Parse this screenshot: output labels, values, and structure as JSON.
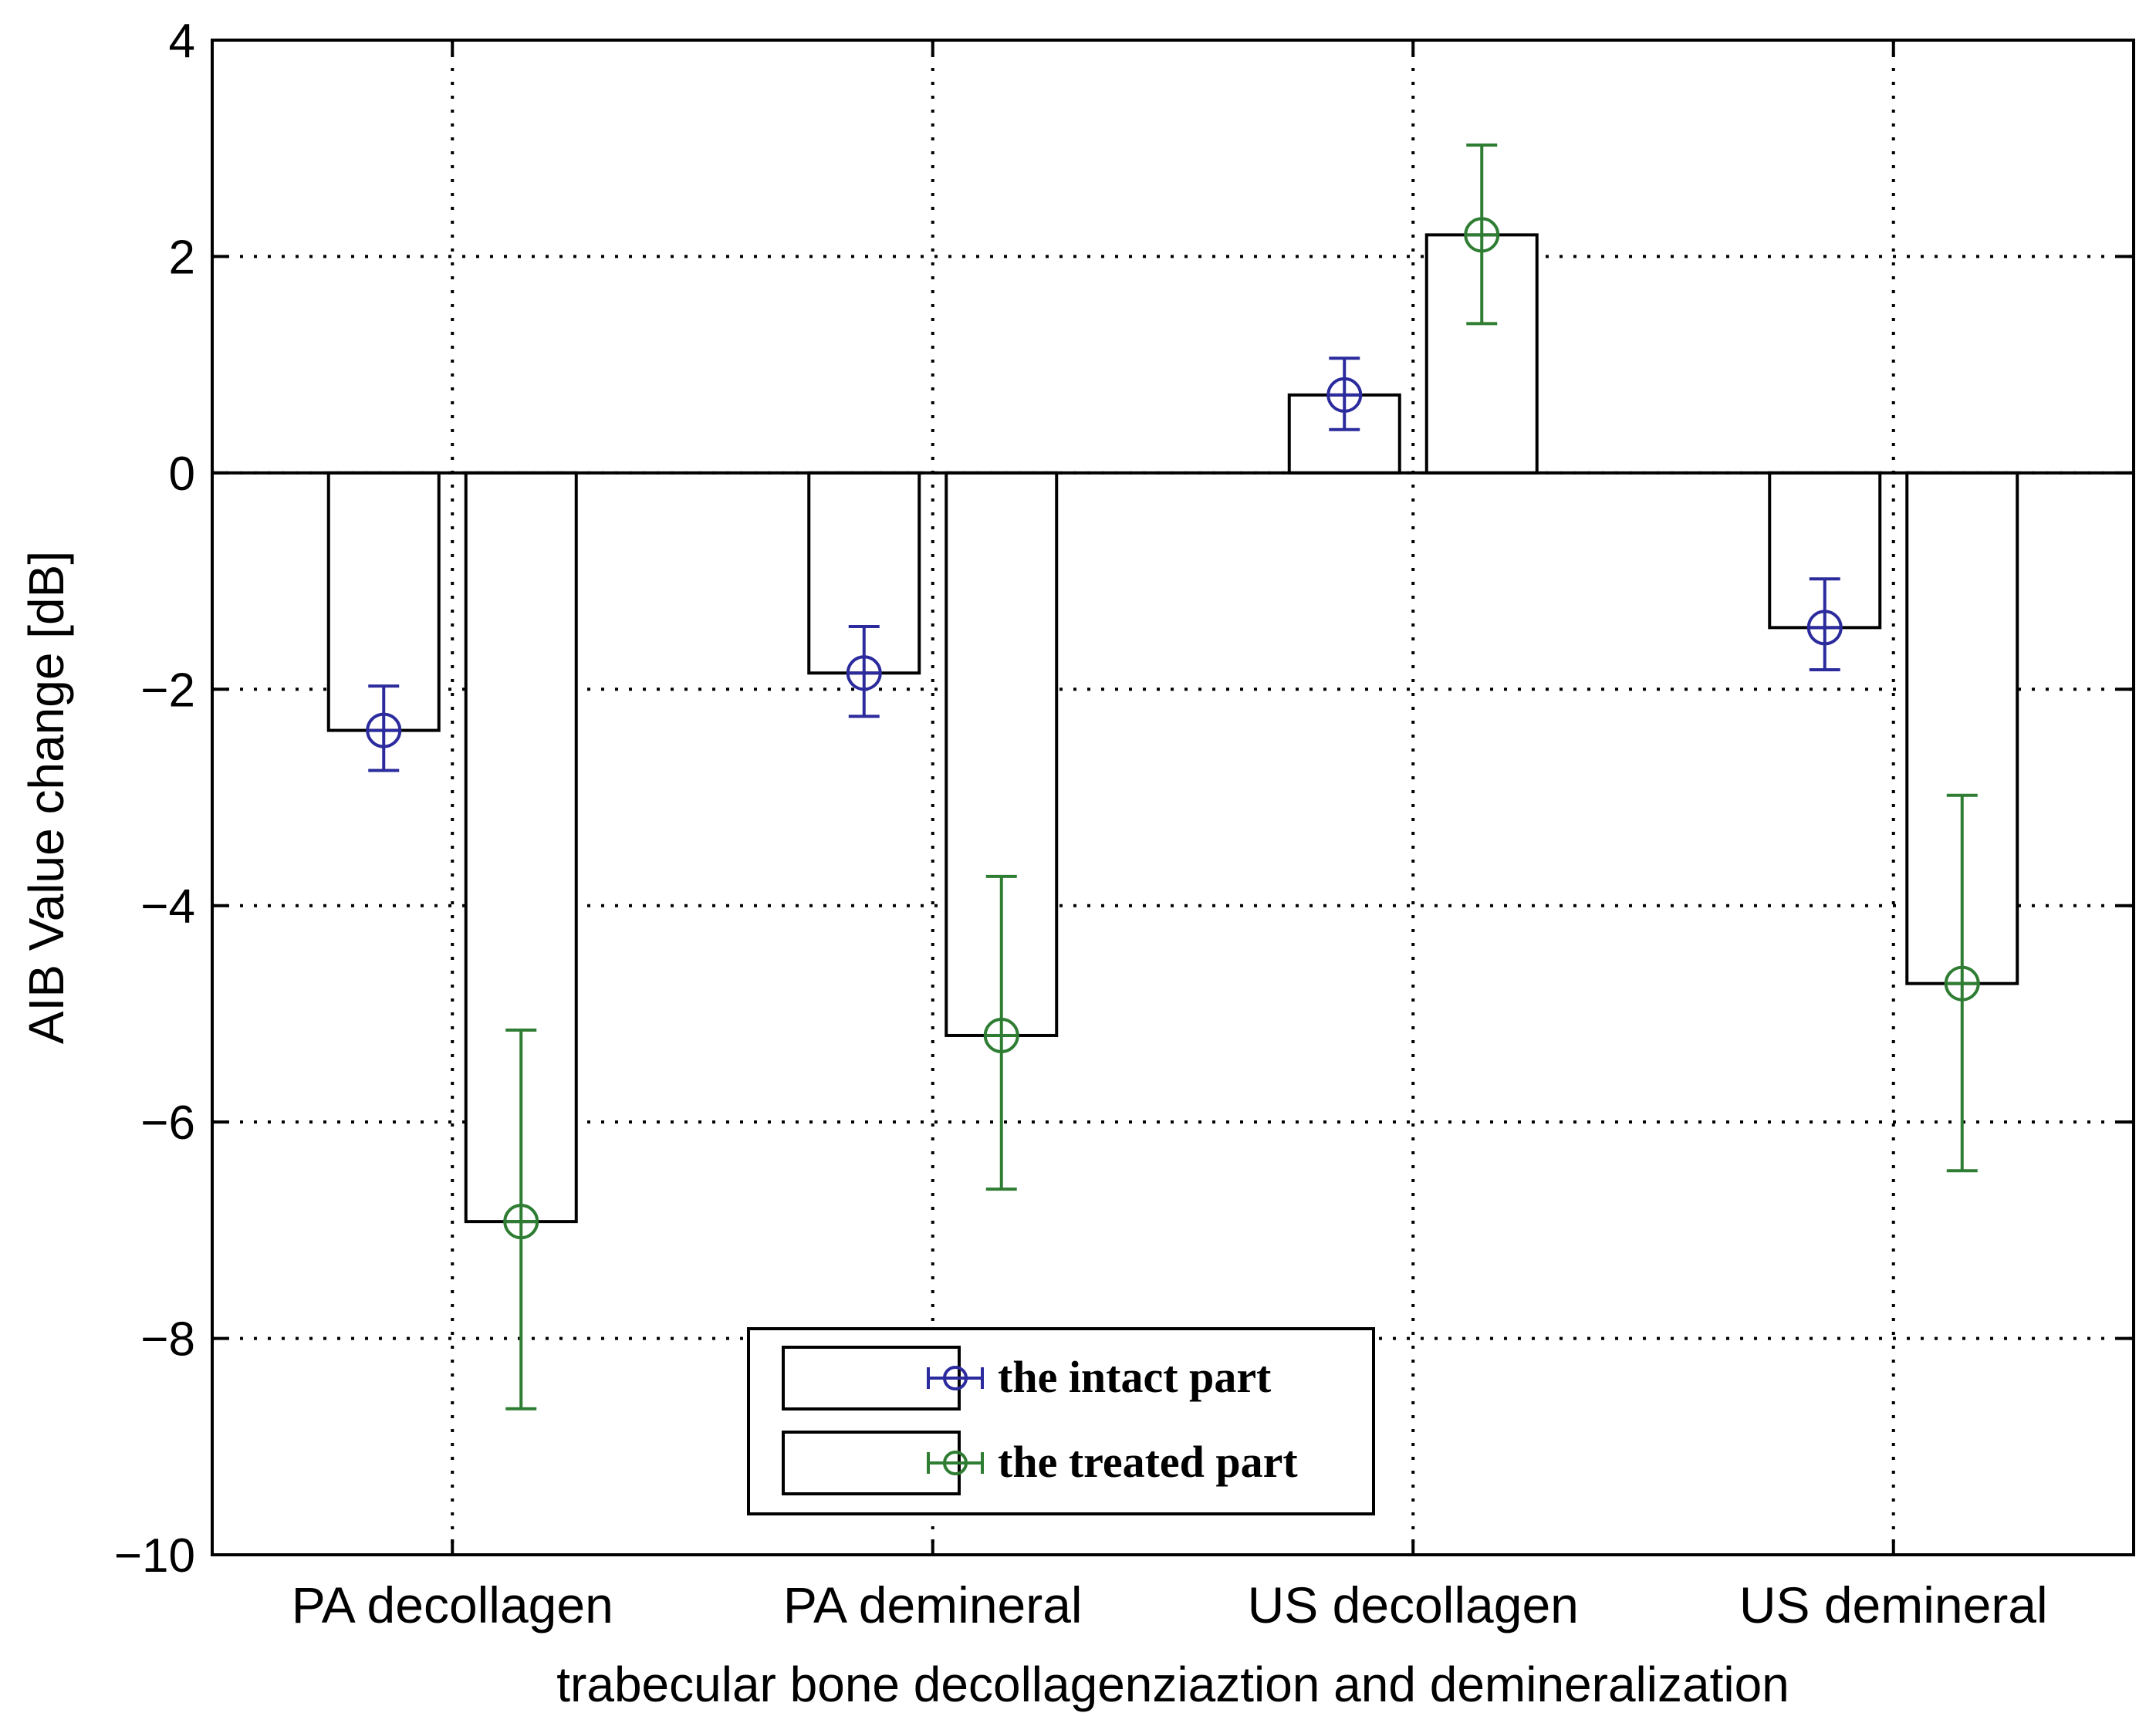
{
  "chart_data": {
    "type": "bar",
    "title": "",
    "xlabel": "trabecular bone decollagenziaztion and demineralization",
    "ylabel": "AIB Value change [dB]",
    "ylim": [
      -10,
      4
    ],
    "yticks": [
      4,
      2,
      0,
      -2,
      -4,
      -6,
      -8,
      -10
    ],
    "ytick_labels": [
      "4",
      "2",
      "0",
      "−2",
      "−4",
      "−6",
      "−8",
      "−10"
    ],
    "categories": [
      "PA decollagen",
      "PA demineral",
      "US decollagen",
      "US demineral"
    ],
    "grid": true,
    "legend_position": "bottom-center",
    "series": [
      {
        "name": "the intact part",
        "color": "#2b2b9e",
        "values": [
          -2.38,
          -1.85,
          0.72,
          -1.43
        ],
        "error_low": [
          -2.75,
          -2.25,
          0.4,
          -1.82
        ],
        "error_high": [
          -1.97,
          -1.42,
          1.06,
          -0.98
        ]
      },
      {
        "name": "the treated part",
        "color": "#2e7d32",
        "values": [
          -6.92,
          -5.2,
          2.2,
          -4.72
        ],
        "error_low": [
          -8.65,
          -6.62,
          1.38,
          -6.45
        ],
        "error_high": [
          -5.15,
          -3.73,
          3.03,
          -2.98
        ]
      }
    ]
  }
}
